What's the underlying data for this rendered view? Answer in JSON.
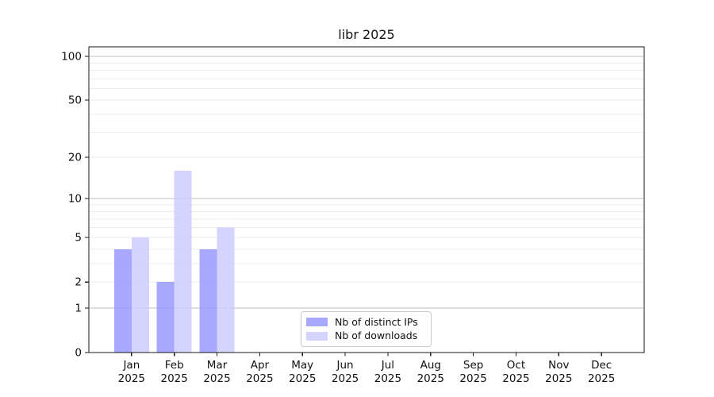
{
  "chart_data": {
    "type": "bar",
    "title": "libr 2025",
    "categories": [
      "Jan",
      "Feb",
      "Mar",
      "Apr",
      "May",
      "Jun",
      "Jul",
      "Aug",
      "Sep",
      "Oct",
      "Nov",
      "Dec"
    ],
    "x_tick_second_line": "2025",
    "series": [
      {
        "name": "Nb of distinct IPs",
        "color": "#9999ff",
        "values": [
          4,
          2,
          4,
          0,
          0,
          0,
          0,
          0,
          0,
          0,
          0,
          0
        ]
      },
      {
        "name": "Nb of downloads",
        "color": "#ccccff",
        "values": [
          5,
          16,
          6,
          0,
          0,
          0,
          0,
          0,
          0,
          0,
          0,
          0
        ]
      }
    ],
    "bar_opacity": 0.85,
    "y_scale": "log1p",
    "ylim": [
      0,
      116
    ],
    "y_tick_labels": [
      0,
      1,
      2,
      5,
      10,
      20,
      50,
      100
    ],
    "gridlines_decade": [
      1,
      10,
      100
    ],
    "gridlines_light": [
      2,
      3,
      4,
      5,
      6,
      7,
      8,
      9,
      20,
      30,
      40,
      50,
      60,
      70,
      80,
      90
    ],
    "grid": "on",
    "legend_position": "lower center",
    "colors": {
      "decade_grid": "#bdbdbd",
      "light_grid": "#ebebeb",
      "spine": "#1a1a1a",
      "tick_text": "#111111"
    }
  }
}
